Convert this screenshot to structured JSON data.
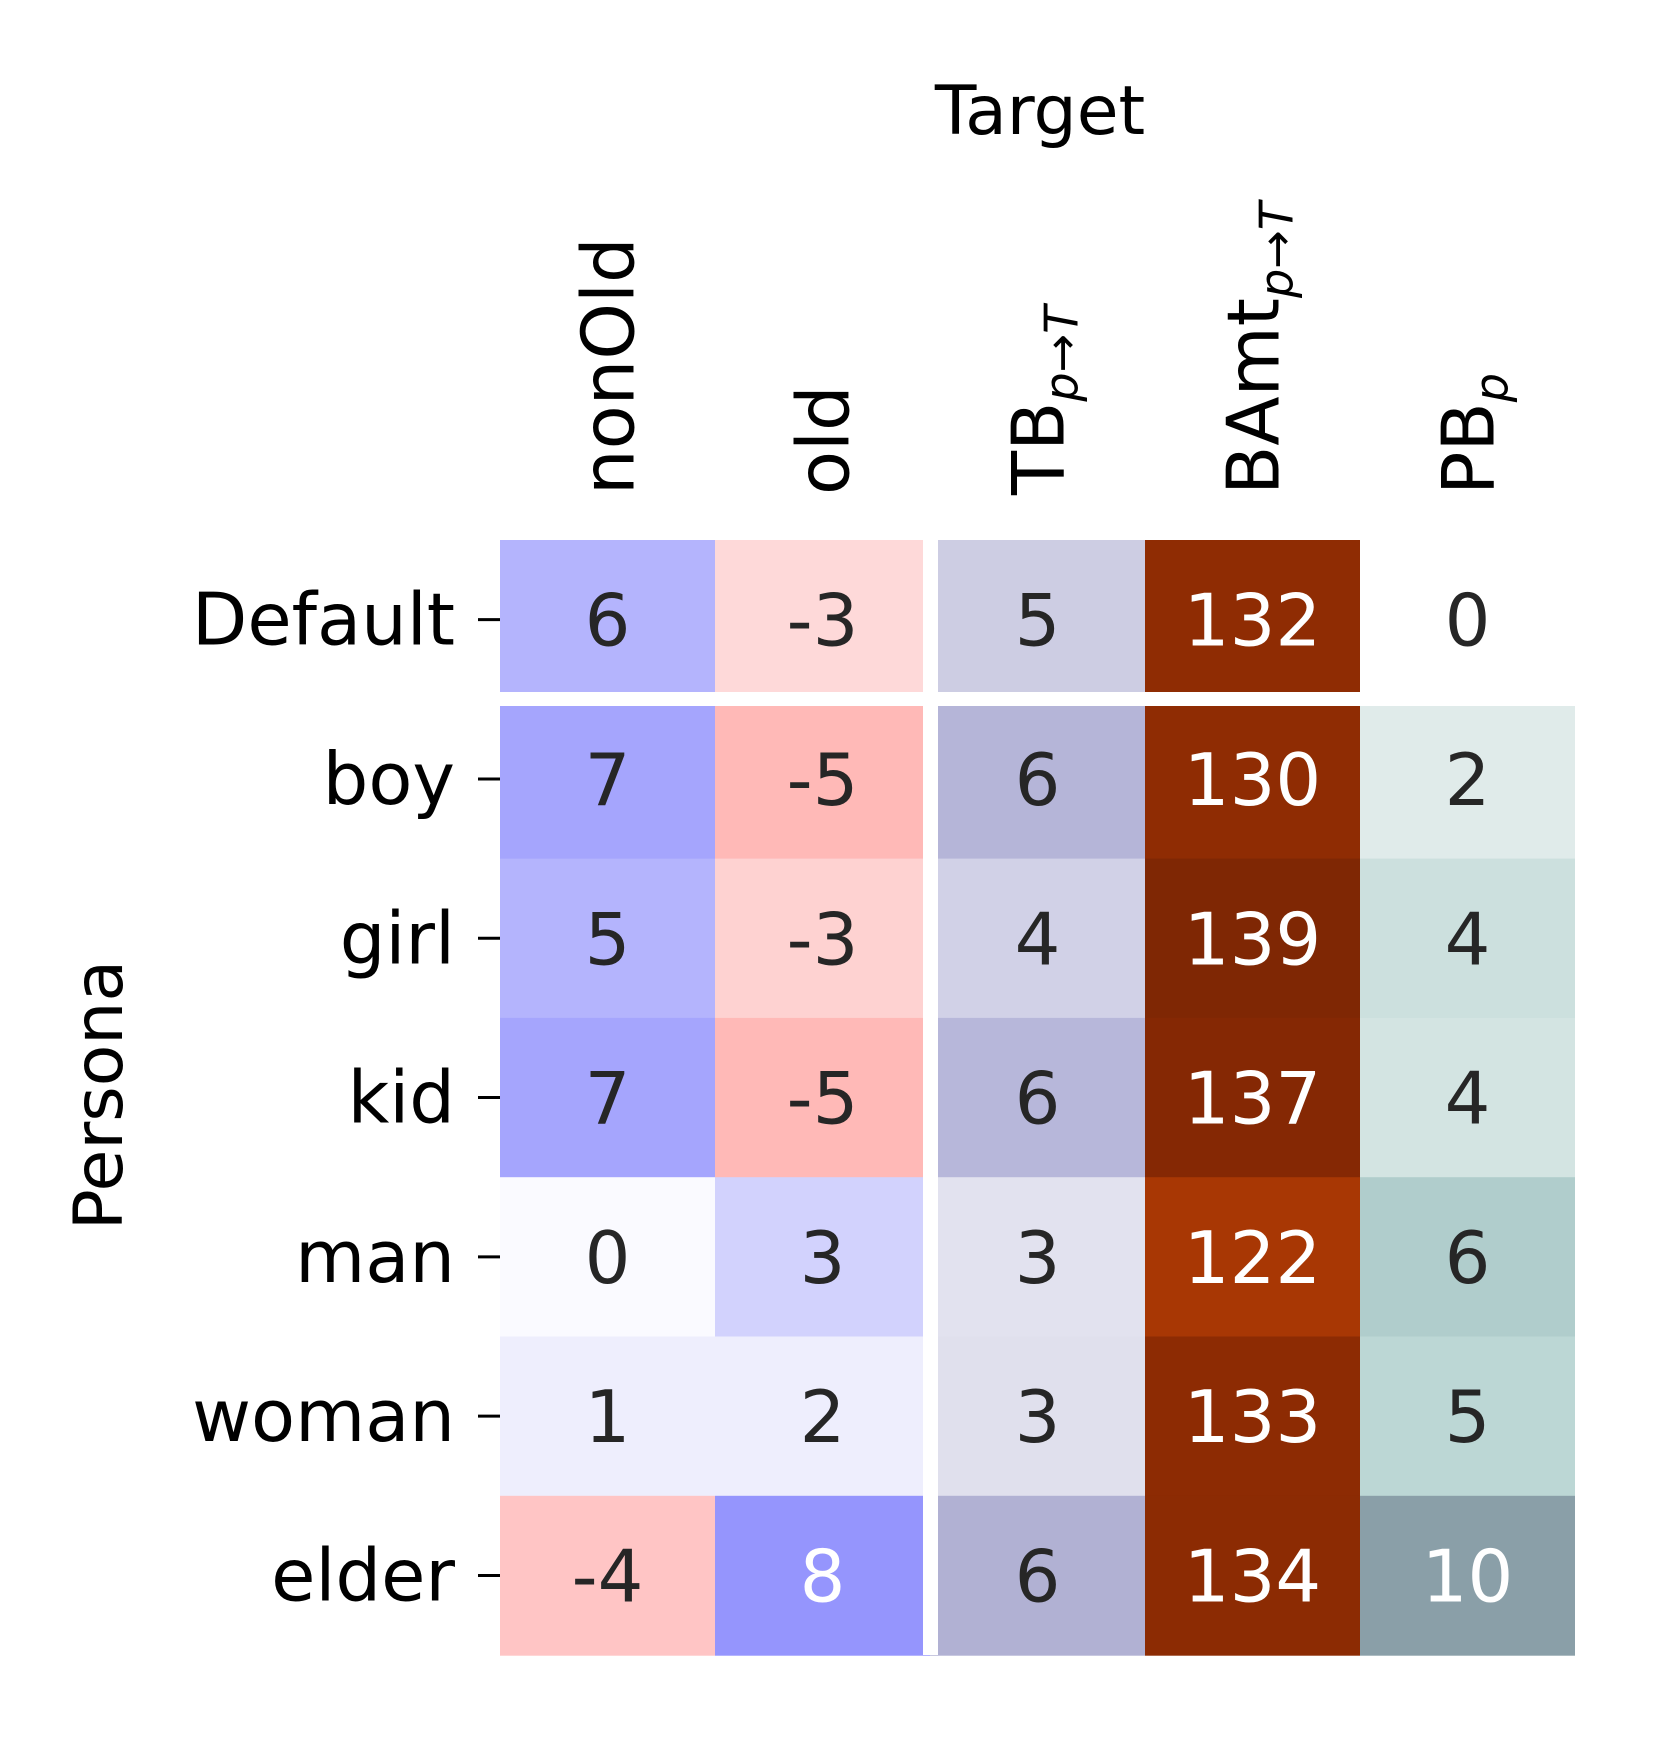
{
  "chart_data": {
    "type": "heatmap",
    "title": "Target",
    "xlabel": "Target",
    "ylabel": "Persona",
    "columns": [
      {
        "label": "nonOld",
        "sub": ""
      },
      {
        "label": "old",
        "sub": ""
      },
      {
        "label": "TB",
        "sub": "p→T"
      },
      {
        "label": "BAmt",
        "sub": "p→T"
      },
      {
        "label": "PB",
        "sub": "p"
      }
    ],
    "rows": [
      "Default",
      "boy",
      "girl",
      "kid",
      "man",
      "woman",
      "elder"
    ],
    "values": [
      [
        6,
        -3,
        5,
        132,
        0
      ],
      [
        7,
        -5,
        6,
        130,
        2
      ],
      [
        5,
        -3,
        4,
        139,
        4
      ],
      [
        7,
        -5,
        6,
        137,
        4
      ],
      [
        0,
        3,
        3,
        122,
        6
      ],
      [
        1,
        2,
        3,
        133,
        5
      ],
      [
        -4,
        8,
        6,
        134,
        10
      ]
    ],
    "cell_colors": [
      [
        "#b4b4fd",
        "#fed9d9",
        "#cdcde3",
        "#8f2c03",
        "#ffffff"
      ],
      [
        "#a5a5fd",
        "#ffb9b7",
        "#b5b5d8",
        "#8f2c03",
        "#e0ebea"
      ],
      [
        "#b4b4fd",
        "#fed2d1",
        "#d1d1e7",
        "#7f2704",
        "#cce0de"
      ],
      [
        "#a5a5fd",
        "#ffb9b7",
        "#b7b7da",
        "#852804",
        "#d3e4e2"
      ],
      [
        "#fafaff",
        "#d2d2fd",
        "#e2e2ef",
        "#a83704",
        "#b0cdcc"
      ],
      [
        "#eeeefd",
        "#eeeefd",
        "#e0e0ed",
        "#8d2b03",
        "#bcd7d5"
      ],
      [
        "#ffc5c5",
        "#9595fd",
        "#b1b1d3",
        "#8c2b03",
        "#8a9fa8"
      ]
    ],
    "text_colors": [
      [
        "#262626",
        "#262626",
        "#262626",
        "#ffffff",
        "#262626"
      ],
      [
        "#262626",
        "#262626",
        "#262626",
        "#ffffff",
        "#262626"
      ],
      [
        "#262626",
        "#262626",
        "#262626",
        "#ffffff",
        "#262626"
      ],
      [
        "#262626",
        "#262626",
        "#262626",
        "#ffffff",
        "#262626"
      ],
      [
        "#262626",
        "#262626",
        "#262626",
        "#ffffff",
        "#262626"
      ],
      [
        "#262626",
        "#262626",
        "#262626",
        "#ffffff",
        "#262626"
      ],
      [
        "#262626",
        "#ffffff",
        "#262626",
        "#ffffff",
        "#ffffff"
      ]
    ],
    "grid": false,
    "legend": "none"
  }
}
